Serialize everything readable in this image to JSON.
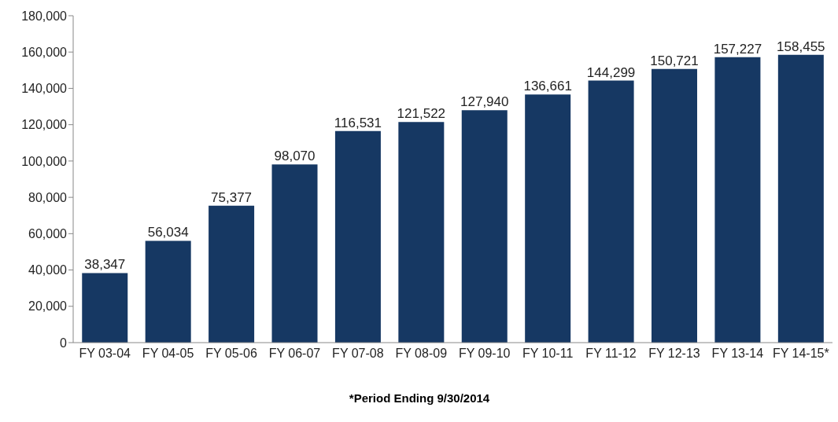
{
  "chart_data": {
    "type": "bar",
    "categories": [
      "FY 03-04",
      "FY 04-05",
      "FY 05-06",
      "FY 06-07",
      "FY 07-08",
      "FY 08-09",
      "FY 09-10",
      "FY 10-11",
      "FY 11-12",
      "FY 12-13",
      "FY 13-14",
      "FY 14-15*"
    ],
    "values": [
      38347,
      56034,
      75377,
      98070,
      116531,
      121522,
      127940,
      136661,
      144299,
      150721,
      157227,
      158455
    ],
    "value_labels": [
      "38,347",
      "56,034",
      "75,377",
      "98,070",
      "116,531",
      "121,522",
      "127,940",
      "136,661",
      "144,299",
      "150,721",
      "157,227",
      "158,455"
    ],
    "color": "#163863",
    "ylim": [
      0,
      180000
    ],
    "yticks": [
      0,
      {
        "value": 20000,
        "label": "20,000"
      },
      {
        "value": 40000,
        "label": "40,000"
      },
      {
        "value": 60000,
        "label": "60,000"
      },
      {
        "value": 80000,
        "label": "80,000"
      },
      {
        "value": 100000,
        "label": "100,000"
      },
      {
        "value": 120000,
        "label": "120,000"
      },
      {
        "value": 140000,
        "label": "140,000"
      },
      {
        "value": 160000,
        "label": "160,000"
      },
      {
        "value": 180000,
        "label": "180,000"
      }
    ],
    "annotations": [
      "*Period Ending 9/30/2014"
    ]
  }
}
